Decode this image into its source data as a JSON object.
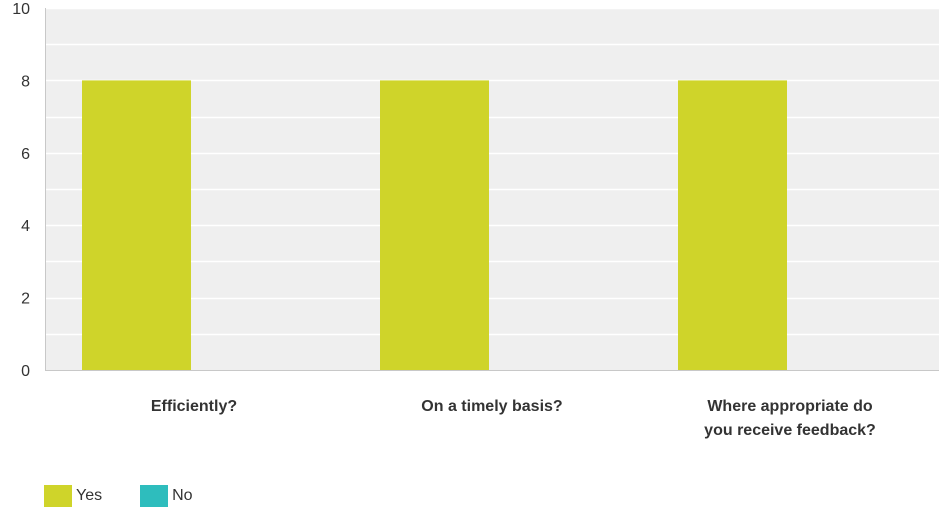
{
  "chart_data": {
    "type": "bar",
    "categories": [
      "Efficiently?",
      "On a timely basis?",
      "Where appropriate do you receive feedback?"
    ],
    "category_lines": [
      [
        "Efficiently?"
      ],
      [
        "On a timely basis?"
      ],
      [
        "Where appropriate do",
        "you receive feedback?"
      ]
    ],
    "series": [
      {
        "name": "Yes",
        "color": "#cfd42a",
        "values": [
          8,
          8,
          8
        ]
      },
      {
        "name": "No",
        "color": "#2ebdbd",
        "values": [
          0,
          0,
          0
        ]
      }
    ],
    "ylim": [
      0,
      10
    ],
    "yticks": [
      0,
      2,
      4,
      6,
      8,
      10
    ],
    "grid": true,
    "legend_position": "bottom-left",
    "title": "",
    "xlabel": "",
    "ylabel": ""
  }
}
